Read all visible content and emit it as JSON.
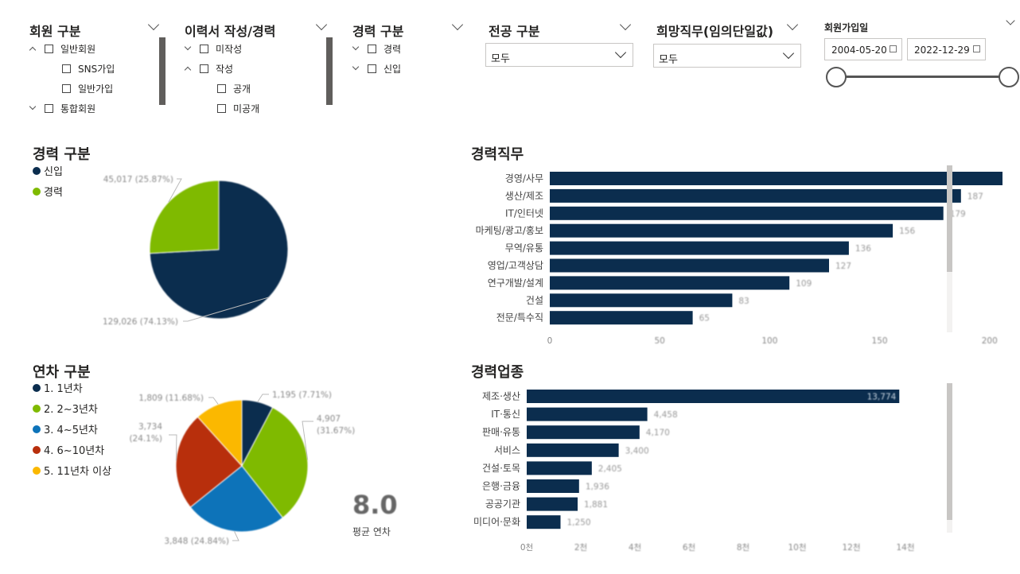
{
  "colors": {
    "navy": "#0b2d4e",
    "green": "#7fba00",
    "blue": "#0d73b9",
    "red": "#b82f0c",
    "yellow": "#fbb800",
    "scroll": "#605e5c"
  },
  "slicers": {
    "member_type": {
      "title": "회원 구분",
      "items": [
        {
          "label": "일반회원",
          "level": 0,
          "expand": "up"
        },
        {
          "label": "SNS가입",
          "level": 1
        },
        {
          "label": "일반가입",
          "level": 1
        },
        {
          "label": "통합회원",
          "level": 0,
          "expand": "down"
        }
      ]
    },
    "resume": {
      "title": "이력서 작성/경력",
      "items": [
        {
          "label": "미작성",
          "level": 0,
          "expand": "down"
        },
        {
          "label": "작성",
          "level": 0,
          "expand": "up"
        },
        {
          "label": "공개",
          "level": 1
        },
        {
          "label": "미공개",
          "level": 1
        }
      ]
    },
    "career": {
      "title": "경력 구분",
      "items": [
        {
          "label": "경력",
          "level": 0,
          "expand": "down"
        },
        {
          "label": "신입",
          "level": 0,
          "expand": "down"
        }
      ]
    },
    "major": {
      "title": "전공 구분",
      "value": "모두"
    },
    "desired_job": {
      "title": "희망직무(임의단일값)",
      "value": "모두"
    },
    "join_date": {
      "title": "회원가입일",
      "start": "2004-05-20",
      "end": "2022-12-29"
    }
  },
  "card": {
    "value": "8.0",
    "label": "평균 연차"
  },
  "chart_data": [
    {
      "type": "pie",
      "title": "경력 구분",
      "legend": "top-left",
      "slices": [
        {
          "label": "신입",
          "value": 129026,
          "percent": "74.13%",
          "color": "#0b2d4e",
          "data_label": "129,026 (74.13%)"
        },
        {
          "label": "경력",
          "value": 45017,
          "percent": "25.87%",
          "color": "#7fba00",
          "data_label": "45,017 (25.87%)"
        }
      ]
    },
    {
      "type": "bar",
      "orientation": "horizontal",
      "title": "경력직무",
      "categories": [
        "경영/사무",
        "생산/제조",
        "IT/인터넷",
        "마케팅/광고/홍보",
        "무역/유통",
        "영업/고객상담",
        "연구개발/설계",
        "건설",
        "전문/특수직"
      ],
      "values": [
        209,
        187,
        179,
        156,
        136,
        127,
        109,
        83,
        65
      ],
      "xticks": [
        "0",
        "50",
        "100",
        "150",
        "200"
      ],
      "xlim": [
        0,
        220
      ],
      "color": "#0b2d4e",
      "grid": false
    },
    {
      "type": "pie",
      "title": "연차 구분",
      "legend": "top-left",
      "slices": [
        {
          "label": "1. 1년차",
          "value": 1195,
          "percent": "7.71%",
          "color": "#0b2d4e",
          "data_label": "1,195 (7.71%)"
        },
        {
          "label": "2. 2~3년차",
          "value": 4907,
          "percent": "31.67%",
          "color": "#7fba00",
          "data_label": "4,907 (31.67%)"
        },
        {
          "label": "3. 4~5년차",
          "value": 3848,
          "percent": "24.84%",
          "color": "#0d73b9",
          "data_label": "3,848 (24.84%)"
        },
        {
          "label": "4. 6~10년차",
          "value": 3734,
          "percent": "24.1%",
          "color": "#b82f0c",
          "data_label": "3,734 (24.1%)"
        },
        {
          "label": "5. 11년차 이상",
          "value": 1809,
          "percent": "11.68%",
          "color": "#fbb800",
          "data_label": "1,809 (11.68%)"
        }
      ]
    },
    {
      "type": "bar",
      "orientation": "horizontal",
      "title": "경력업종",
      "categories": [
        "제조·생산",
        "IT·통신",
        "판매·유통",
        "서비스",
        "건설·토목",
        "은행·금융",
        "공공기관",
        "미디어·문화"
      ],
      "values": [
        13774,
        4458,
        4170,
        3400,
        2405,
        1936,
        1881,
        1250
      ],
      "data_labels": [
        "13,774",
        "4,458",
        "4,170",
        "3,400",
        "2,405",
        "1,936",
        "1,881",
        "1,250"
      ],
      "xticks": [
        "0천",
        "2천",
        "4천",
        "6천",
        "8천",
        "10천",
        "12천",
        "14천"
      ],
      "xlim": [
        0,
        14000
      ],
      "color": "#0b2d4e",
      "grid": false
    }
  ]
}
